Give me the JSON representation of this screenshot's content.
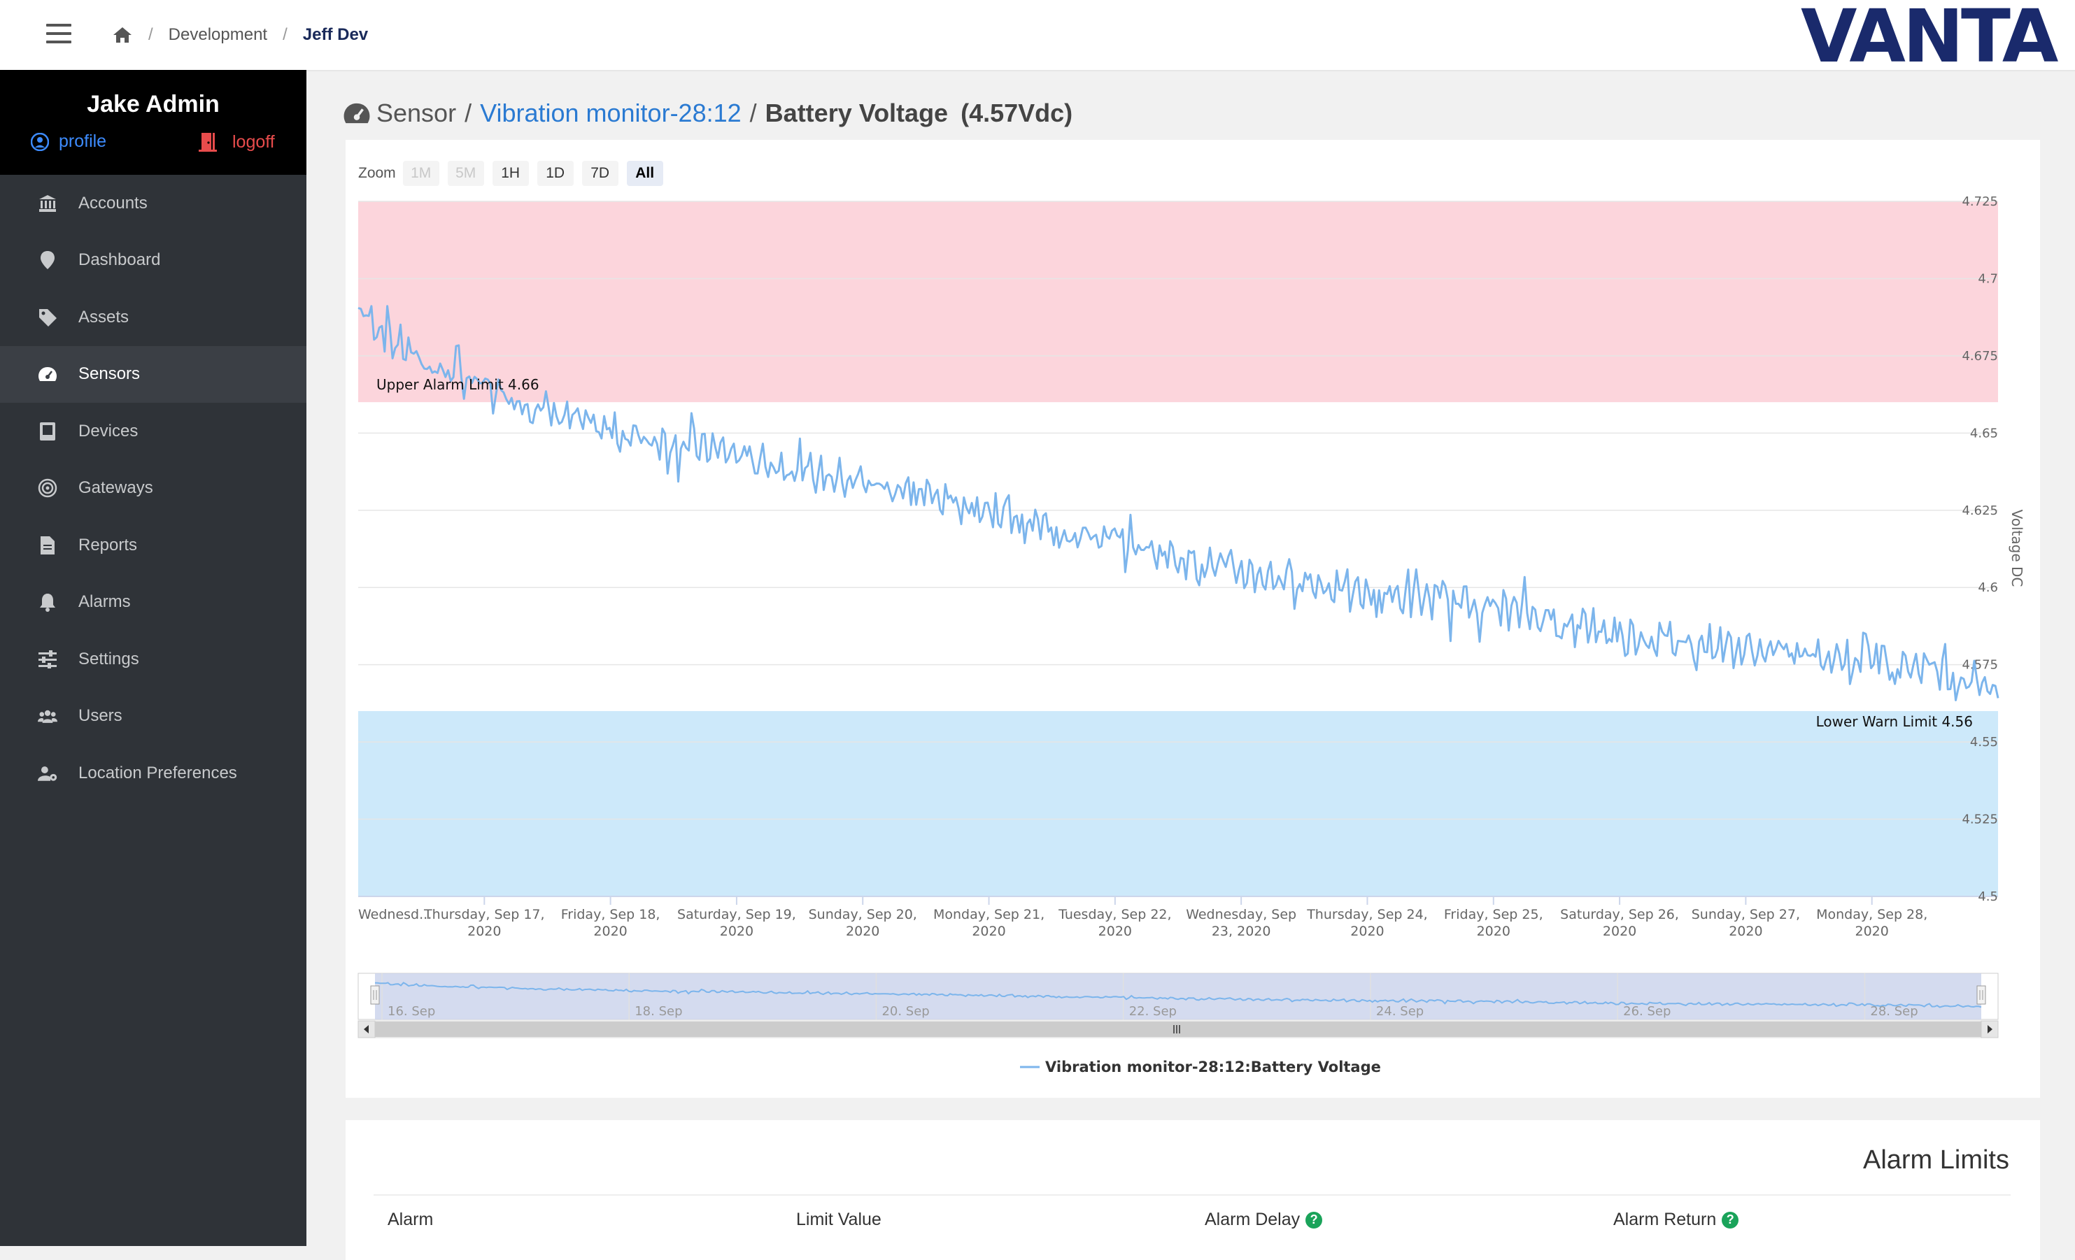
{
  "breadcrumb": {
    "items": [
      "Development"
    ],
    "current": "Jeff Dev"
  },
  "logo": {
    "text": "VANTA",
    "color": "#1a2a6c"
  },
  "user": {
    "name": "Jake Admin",
    "profile_label": "profile",
    "logoff_label": "logoff"
  },
  "sidebar": {
    "items": [
      {
        "label": "Accounts",
        "icon": "bank-icon"
      },
      {
        "label": "Dashboard",
        "icon": "map-pin-icon"
      },
      {
        "label": "Assets",
        "icon": "tag-icon"
      },
      {
        "label": "Sensors",
        "icon": "gauge-icon",
        "active": true
      },
      {
        "label": "Devices",
        "icon": "device-icon"
      },
      {
        "label": "Gateways",
        "icon": "signal-icon"
      },
      {
        "label": "Reports",
        "icon": "file-icon"
      },
      {
        "label": "Alarms",
        "icon": "bell-icon"
      },
      {
        "label": "Settings",
        "icon": "sliders-icon"
      },
      {
        "label": "Users",
        "icon": "users-icon"
      },
      {
        "label": "Location Preferences",
        "icon": "user-gear-icon"
      }
    ]
  },
  "page": {
    "section": "Sensor",
    "sensor_link": "Vibration monitor-28:12",
    "metric": "Battery Voltage",
    "current_value": "(4.57Vdc)"
  },
  "zoom": {
    "label": "Zoom",
    "buttons": [
      "1M",
      "5M",
      "1H",
      "1D",
      "7D",
      "All"
    ],
    "disabled": [
      "1M",
      "5M"
    ],
    "selected": "All"
  },
  "chart_data": {
    "type": "line",
    "ylabel": "Voltage DC",
    "ylim": [
      4.5,
      4.725
    ],
    "y_ticks": [
      "4.725",
      "4.7",
      "4.675",
      "4.65",
      "4.625",
      "4.6",
      "4.575",
      "4.55",
      "4.525",
      "4.5"
    ],
    "x_ticks": [
      [
        "Wednesd..."
      ],
      [
        "Thursday, Sep 17,",
        "2020"
      ],
      [
        "Friday, Sep 18,",
        "2020"
      ],
      [
        "Saturday, Sep 19,",
        "2020"
      ],
      [
        "Sunday, Sep 20,",
        "2020"
      ],
      [
        "Monday, Sep 21,",
        "2020"
      ],
      [
        "Tuesday, Sep 22,",
        "2020"
      ],
      [
        "Wednesday, Sep",
        "23, 2020"
      ],
      [
        "Thursday, Sep 24,",
        "2020"
      ],
      [
        "Friday, Sep 25,",
        "2020"
      ],
      [
        "Saturday, Sep 26,",
        "2020"
      ],
      [
        "Sunday, Sep 27,",
        "2020"
      ],
      [
        "Monday, Sep 28,",
        "2020"
      ]
    ],
    "x_range": [
      "2020-09-16",
      "2020-09-29"
    ],
    "bands": [
      {
        "from": 4.66,
        "to": 4.725,
        "color": "#fcd5dc",
        "label": "Upper Alarm Limit 4.66"
      },
      {
        "from": 4.5,
        "to": 4.56,
        "color": "#cde9fa",
        "label": "Lower Warn Limit 4.56"
      }
    ],
    "series": [
      {
        "name": "Vibration monitor-28:12:Battery Voltage",
        "color": "#7cb5ec",
        "points": [
          [
            "2020-09-16 00:00",
            4.69
          ],
          [
            "2020-09-16 12:00",
            4.673
          ],
          [
            "2020-09-17 00:00",
            4.665
          ],
          [
            "2020-09-17 12:00",
            4.657
          ],
          [
            "2020-09-18 00:00",
            4.65
          ],
          [
            "2020-09-18 12:00",
            4.647
          ],
          [
            "2020-09-19 00:00",
            4.643
          ],
          [
            "2020-09-19 12:00",
            4.638
          ],
          [
            "2020-09-20 00:00",
            4.634
          ],
          [
            "2020-09-20 12:00",
            4.63
          ],
          [
            "2020-09-21 00:00",
            4.625
          ],
          [
            "2020-09-21 12:00",
            4.619
          ],
          [
            "2020-09-22 00:00",
            4.615
          ],
          [
            "2020-09-22 12:00",
            4.61
          ],
          [
            "2020-09-23 00:00",
            4.605
          ],
          [
            "2020-09-23 12:00",
            4.602
          ],
          [
            "2020-09-24 00:00",
            4.598
          ],
          [
            "2020-09-24 12:00",
            4.596
          ],
          [
            "2020-09-25 00:00",
            4.594
          ],
          [
            "2020-09-25 12:00",
            4.589
          ],
          [
            "2020-09-26 00:00",
            4.585
          ],
          [
            "2020-09-26 12:00",
            4.583
          ],
          [
            "2020-09-27 00:00",
            4.58
          ],
          [
            "2020-09-27 12:00",
            4.578
          ],
          [
            "2020-09-28 00:00",
            4.577
          ],
          [
            "2020-09-28 12:00",
            4.574
          ],
          [
            "2020-09-29 00:00",
            4.568
          ]
        ]
      }
    ],
    "navigator_ticks": [
      "16. Sep",
      "18. Sep",
      "20. Sep",
      "22. Sep",
      "24. Sep",
      "26. Sep",
      "28. Sep"
    ],
    "legend_placement": "bottom-center"
  },
  "alarm_limits": {
    "title": "Alarm Limits",
    "columns": [
      "Alarm",
      "Limit Value",
      "Alarm Delay",
      "Alarm Return"
    ],
    "help_icon": "?"
  }
}
